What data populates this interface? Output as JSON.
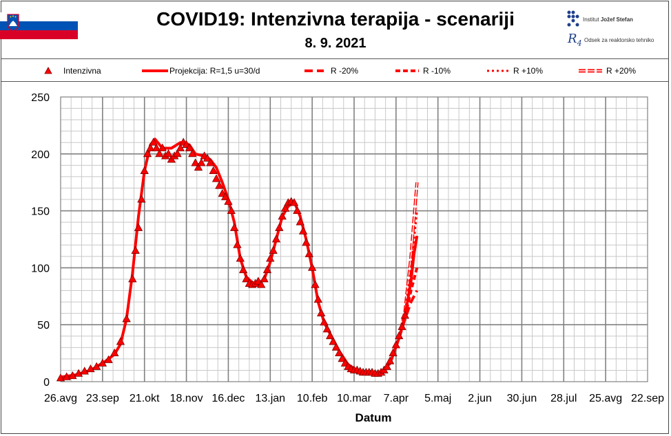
{
  "header": {
    "title": "COVID19: Intenzivna terapija - scenariji",
    "date": "8. 9. 2021",
    "logo_institute": "Institut",
    "logo_institute_name": "Jožef Stefan",
    "logo_dept": "Odsek za reaktorsko tehniko",
    "flag_colors": [
      "#ffffff",
      "#0052b4",
      "#d80027"
    ]
  },
  "chart_data": {
    "type": "line",
    "xlabel": "Datum",
    "ylabel": "",
    "ylim": [
      0,
      250
    ],
    "yticks": [
      0,
      50,
      100,
      150,
      200,
      250
    ],
    "x_start": "2020-08-26",
    "x_end": "2021-09-22",
    "xticks": [
      "26.avg",
      "23.sep",
      "21.okt",
      "18.nov",
      "16.dec",
      "13.jan",
      "10.feb",
      "10.mar",
      "7.apr",
      "5.maj",
      "2.jun",
      "30.jun",
      "28.jul",
      "25.avg",
      "22.sep"
    ],
    "grid": true,
    "legend_position": "top",
    "series": [
      {
        "name": "Intenzivna",
        "style": "triangle-markers",
        "color": "#ff0000",
        "points": [
          [
            0,
            3
          ],
          [
            4,
            4
          ],
          [
            8,
            5
          ],
          [
            12,
            7
          ],
          [
            16,
            9
          ],
          [
            20,
            11
          ],
          [
            24,
            13
          ],
          [
            28,
            16
          ],
          [
            32,
            19
          ],
          [
            36,
            25
          ],
          [
            40,
            35
          ],
          [
            44,
            55
          ],
          [
            48,
            90
          ],
          [
            50,
            115
          ],
          [
            52,
            135
          ],
          [
            54,
            160
          ],
          [
            56,
            185
          ],
          [
            58,
            200
          ],
          [
            60,
            205
          ],
          [
            62,
            210
          ],
          [
            64,
            205
          ],
          [
            66,
            200
          ],
          [
            68,
            205
          ],
          [
            70,
            198
          ],
          [
            72,
            200
          ],
          [
            74,
            195
          ],
          [
            76,
            198
          ],
          [
            78,
            200
          ],
          [
            80,
            205
          ],
          [
            82,
            210
          ],
          [
            84,
            208
          ],
          [
            86,
            205
          ],
          [
            88,
            200
          ],
          [
            90,
            192
          ],
          [
            92,
            188
          ],
          [
            94,
            192
          ],
          [
            96,
            198
          ],
          [
            98,
            196
          ],
          [
            100,
            192
          ],
          [
            102,
            185
          ],
          [
            104,
            178
          ],
          [
            106,
            172
          ],
          [
            108,
            165
          ],
          [
            110,
            162
          ],
          [
            112,
            158
          ],
          [
            114,
            150
          ],
          [
            116,
            135
          ],
          [
            118,
            120
          ],
          [
            120,
            108
          ],
          [
            122,
            98
          ],
          [
            124,
            90
          ],
          [
            126,
            86
          ],
          [
            128,
            85
          ],
          [
            130,
            86
          ],
          [
            132,
            88
          ],
          [
            134,
            85
          ],
          [
            136,
            90
          ],
          [
            138,
            98
          ],
          [
            140,
            108
          ],
          [
            142,
            115
          ],
          [
            144,
            125
          ],
          [
            146,
            135
          ],
          [
            148,
            145
          ],
          [
            150,
            152
          ],
          [
            152,
            157
          ],
          [
            154,
            158
          ],
          [
            156,
            157
          ],
          [
            158,
            150
          ],
          [
            160,
            140
          ],
          [
            162,
            132
          ],
          [
            164,
            122
          ],
          [
            166,
            112
          ],
          [
            168,
            100
          ],
          [
            170,
            85
          ],
          [
            172,
            72
          ],
          [
            174,
            60
          ],
          [
            176,
            52
          ],
          [
            178,
            46
          ],
          [
            180,
            40
          ],
          [
            182,
            35
          ],
          [
            184,
            30
          ],
          [
            186,
            25
          ],
          [
            188,
            20
          ],
          [
            190,
            16
          ],
          [
            192,
            13
          ],
          [
            194,
            11
          ],
          [
            196,
            10
          ],
          [
            198,
            10
          ],
          [
            200,
            9
          ],
          [
            202,
            8
          ],
          [
            204,
            8
          ],
          [
            206,
            8
          ],
          [
            208,
            8
          ],
          [
            210,
            7
          ],
          [
            212,
            7
          ],
          [
            214,
            8
          ],
          [
            216,
            10
          ],
          [
            218,
            13
          ],
          [
            220,
            18
          ],
          [
            222,
            25
          ],
          [
            224,
            32
          ],
          [
            226,
            40
          ],
          [
            228,
            48
          ],
          [
            230,
            58
          ]
        ]
      },
      {
        "name": "Projekcija: R=1,5 u=30/d",
        "style": "solid",
        "color": "#ff0000",
        "points": [
          [
            0,
            4
          ],
          [
            10,
            6
          ],
          [
            20,
            10
          ],
          [
            30,
            18
          ],
          [
            36,
            24
          ],
          [
            40,
            33
          ],
          [
            44,
            55
          ],
          [
            48,
            95
          ],
          [
            52,
            145
          ],
          [
            56,
            185
          ],
          [
            60,
            208
          ],
          [
            63,
            213
          ],
          [
            68,
            205
          ],
          [
            74,
            205
          ],
          [
            80,
            210
          ],
          [
            86,
            208
          ],
          [
            90,
            200
          ],
          [
            96,
            198
          ],
          [
            100,
            195
          ],
          [
            104,
            188
          ],
          [
            108,
            175
          ],
          [
            112,
            160
          ],
          [
            116,
            140
          ],
          [
            120,
            108
          ],
          [
            124,
            92
          ],
          [
            128,
            87
          ],
          [
            132,
            86
          ],
          [
            136,
            90
          ],
          [
            140,
            105
          ],
          [
            144,
            125
          ],
          [
            148,
            145
          ],
          [
            152,
            154
          ],
          [
            156,
            158
          ],
          [
            160,
            145
          ],
          [
            164,
            125
          ],
          [
            168,
            100
          ],
          [
            172,
            70
          ],
          [
            176,
            52
          ],
          [
            180,
            42
          ],
          [
            186,
            27
          ],
          [
            192,
            15
          ],
          [
            198,
            10
          ],
          [
            206,
            8
          ],
          [
            214,
            8
          ],
          [
            220,
            16
          ],
          [
            226,
            38
          ],
          [
            230,
            58
          ],
          [
            234,
            88
          ],
          [
            236,
            112
          ],
          [
            238,
            128
          ]
        ]
      },
      {
        "name": "R -20%",
        "style": "long-dash",
        "color": "#ff0000",
        "points": [
          [
            226,
            38
          ],
          [
            230,
            55
          ],
          [
            234,
            70
          ],
          [
            238,
            80
          ]
        ]
      },
      {
        "name": "R -10%",
        "style": "dash",
        "color": "#ff0000",
        "points": [
          [
            226,
            38
          ],
          [
            230,
            57
          ],
          [
            234,
            80
          ],
          [
            238,
            100
          ]
        ]
      },
      {
        "name": "R +10%",
        "style": "dot",
        "color": "#ff0000",
        "points": [
          [
            226,
            38
          ],
          [
            230,
            60
          ],
          [
            234,
            100
          ],
          [
            238,
            150
          ]
        ]
      },
      {
        "name": "R +20%",
        "style": "double",
        "color": "#ff0000",
        "points": [
          [
            226,
            38
          ],
          [
            230,
            62
          ],
          [
            234,
            110
          ],
          [
            238,
            175
          ]
        ]
      }
    ]
  }
}
